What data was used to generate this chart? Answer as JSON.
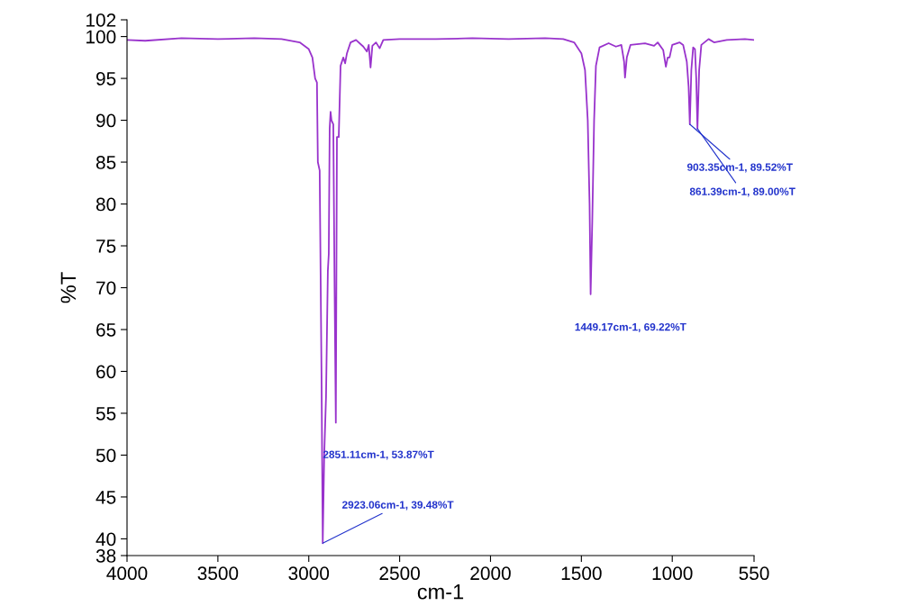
{
  "chart_data": {
    "type": "line",
    "xlabel": "cm-1",
    "ylabel": "%T",
    "xlim": [
      4000,
      550
    ],
    "xticks": [
      4000,
      3500,
      3000,
      2500,
      2000,
      1500,
      1000,
      550
    ],
    "ylim": [
      38,
      102
    ],
    "yticks": [
      38,
      40,
      45,
      50,
      55,
      60,
      65,
      70,
      75,
      80,
      85,
      90,
      95,
      100,
      102
    ],
    "grid": false,
    "marker": "none",
    "line_style": "solid",
    "series": [
      {
        "color": "#9933cc",
        "x": [
          4000,
          3900,
          3700,
          3500,
          3300,
          3150,
          3050,
          3000,
          2980,
          2965,
          2955,
          2950,
          2940,
          2930,
          2923.06,
          2915,
          2905,
          2895,
          2890,
          2885,
          2880,
          2875,
          2865,
          2858,
          2851.11,
          2845,
          2835,
          2825,
          2810,
          2800,
          2790,
          2770,
          2740,
          2700,
          2680,
          2670,
          2660,
          2650,
          2630,
          2610,
          2590,
          2500,
          2300,
          2100,
          1900,
          1700,
          1600,
          1540,
          1500,
          1480,
          1465,
          1455,
          1449.17,
          1440,
          1430,
          1420,
          1400,
          1350,
          1310,
          1280,
          1265,
          1260,
          1250,
          1230,
          1150,
          1100,
          1080,
          1050,
          1035,
          1025,
          1015,
          1000,
          960,
          940,
          920,
          910,
          903.35,
          895,
          885,
          875,
          868,
          861.39,
          852,
          840,
          800,
          770,
          700,
          600,
          550
        ],
        "values": [
          99.6,
          99.5,
          99.8,
          99.7,
          99.8,
          99.7,
          99.3,
          98.5,
          97.5,
          95,
          94.5,
          85,
          84,
          60,
          39.48,
          50,
          57,
          72,
          74,
          89,
          91,
          90,
          89.5,
          70,
          53.87,
          88,
          88,
          96.5,
          97.5,
          96.8,
          98,
          99.3,
          99.6,
          98.8,
          98.2,
          99,
          96.3,
          98.9,
          99.3,
          98.6,
          99.6,
          99.7,
          99.7,
          99.8,
          99.7,
          99.8,
          99.7,
          99.3,
          98,
          96,
          90,
          80,
          69.22,
          78,
          90,
          96.5,
          98.7,
          99.2,
          98.8,
          99,
          97,
          95.1,
          97.5,
          99,
          99.2,
          98.9,
          99.3,
          98.4,
          96.4,
          97.5,
          97.5,
          99,
          99.3,
          99,
          97,
          94,
          89.52,
          96,
          98.7,
          98.5,
          95,
          89.0,
          96,
          99,
          99.7,
          99.3,
          99.6,
          99.7,
          99.6
        ]
      }
    ],
    "annotations": [
      {
        "text": "2923.06cm-1, 39.48%T",
        "x": 2923.06,
        "y": 39.48
      },
      "2851.11cm-1, 53.87%T",
      "1449.17cm-1, 69.22%T",
      {
        "text": "903.35cm-1, 89.52%T",
        "x": 903.35,
        "y": 89.52
      },
      {
        "text": "861.39cm-1, 89.00%T",
        "x": 861.39,
        "y": 89.0
      }
    ]
  }
}
